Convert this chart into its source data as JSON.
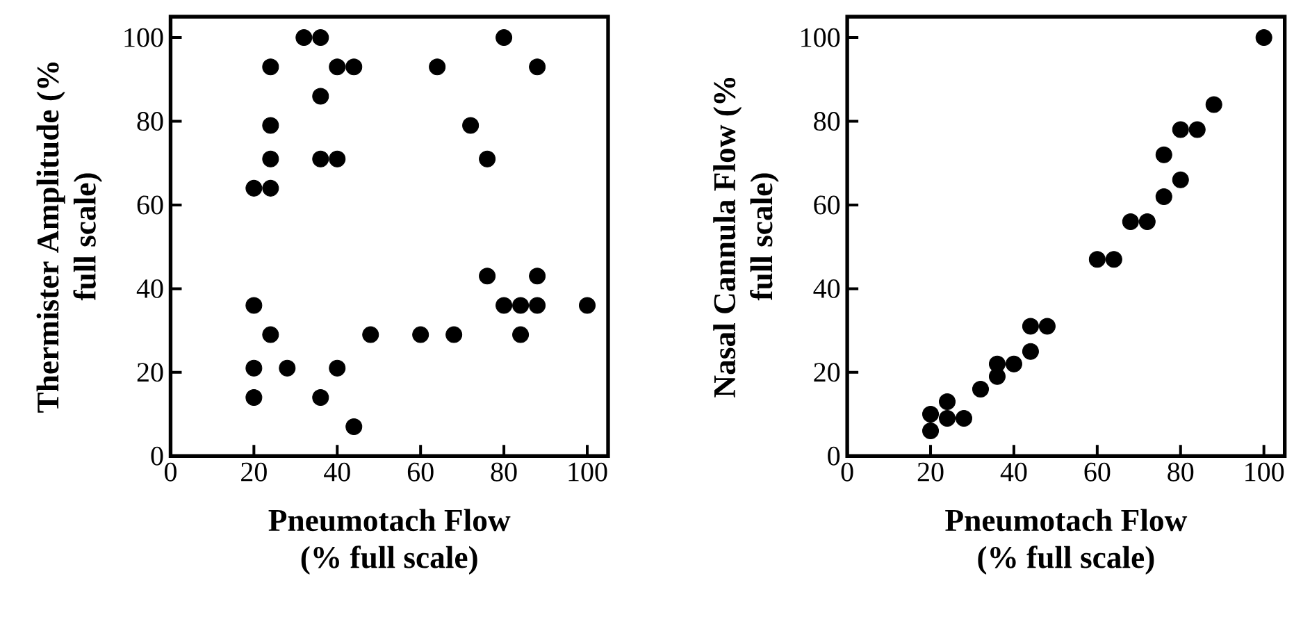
{
  "chart_data": [
    {
      "type": "scatter",
      "xlabel": "Pneumotach Flow (% full scale)",
      "ylabel": "Thermister Amplitude (% full scale)",
      "xlim": [
        0,
        105
      ],
      "ylim": [
        0,
        105
      ],
      "xticks": [
        0,
        20,
        40,
        60,
        80,
        100
      ],
      "yticks": [
        0,
        20,
        40,
        60,
        80,
        100
      ],
      "marker": "circle",
      "series": [
        {
          "color": "#000000",
          "x": [
            32,
            36,
            80,
            24,
            40,
            44,
            64,
            88,
            36,
            24,
            72,
            24,
            36,
            40,
            76,
            20,
            24,
            76,
            88,
            20,
            80,
            84,
            88,
            100,
            24,
            48,
            60,
            68,
            84,
            20,
            28,
            40,
            20,
            36,
            44
          ],
          "values": [
            100,
            100,
            100,
            93,
            93,
            93,
            93,
            93,
            86,
            79,
            79,
            71,
            71,
            71,
            71,
            64,
            64,
            43,
            43,
            36,
            36,
            36,
            36,
            36,
            29,
            29,
            29,
            29,
            29,
            21,
            21,
            21,
            14,
            14,
            7
          ]
        }
      ]
    },
    {
      "type": "scatter",
      "xlabel": "Pneumotach Flow (% full scale)",
      "ylabel": "Nasal Cannula Flow (% full scale)",
      "xlim": [
        0,
        105
      ],
      "ylim": [
        0,
        105
      ],
      "xticks": [
        0,
        20,
        40,
        60,
        80,
        100
      ],
      "yticks": [
        0,
        20,
        40,
        60,
        80,
        100
      ],
      "marker": "circle",
      "series": [
        {
          "color": "#000000",
          "x": [
            100,
            88,
            80,
            84,
            76,
            80,
            76,
            68,
            72,
            60,
            64,
            44,
            48,
            44,
            36,
            40,
            36,
            32,
            24,
            20,
            24,
            28,
            20
          ],
          "values": [
            100,
            84,
            78,
            78,
            72,
            66,
            62,
            56,
            56,
            47,
            47,
            31,
            31,
            25,
            22,
            22,
            19,
            16,
            13,
            10,
            9,
            9,
            6
          ]
        }
      ]
    }
  ]
}
